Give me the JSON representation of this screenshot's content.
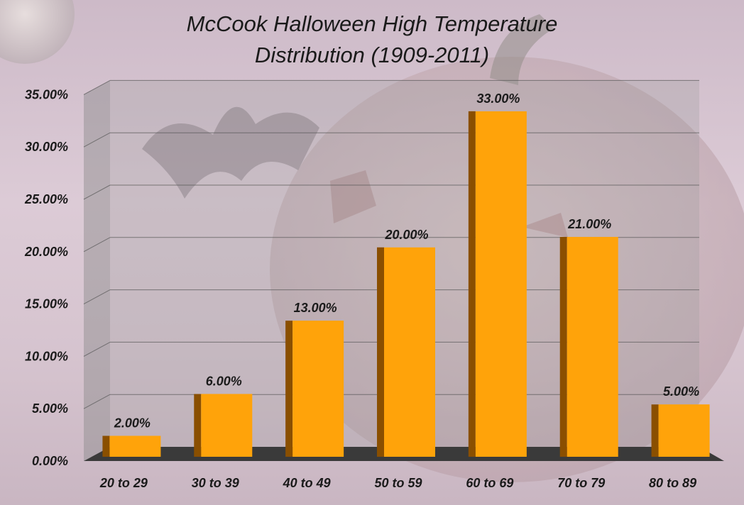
{
  "chart_data": {
    "type": "bar",
    "title": "McCook Halloween High Temperature Distribution (1909-2011)",
    "title_lines": [
      "McCook Halloween High Temperature",
      "Distribution (1909-2011)"
    ],
    "categories": [
      "20 to 29",
      "30 to 39",
      "40 to 49",
      "50 to 59",
      "60 to 69",
      "70 to 79",
      "80 to 89"
    ],
    "values": [
      2.0,
      6.0,
      13.0,
      20.0,
      33.0,
      21.0,
      5.0
    ],
    "data_labels": [
      "2.00%",
      "6.00%",
      "13.00%",
      "20.00%",
      "33.00%",
      "21.00%",
      "5.00%"
    ],
    "y_ticks": [
      "0.00%",
      "5.00%",
      "10.00%",
      "15.00%",
      "20.00%",
      "25.00%",
      "30.00%",
      "35.00%"
    ],
    "ylim": [
      0,
      35
    ],
    "xlabel": "",
    "ylabel": "",
    "grid": true,
    "legend": "none",
    "bar_color": "#ffa30a",
    "bar_side_color": "#8a4f00",
    "floor_color": "#3a3a3a"
  }
}
